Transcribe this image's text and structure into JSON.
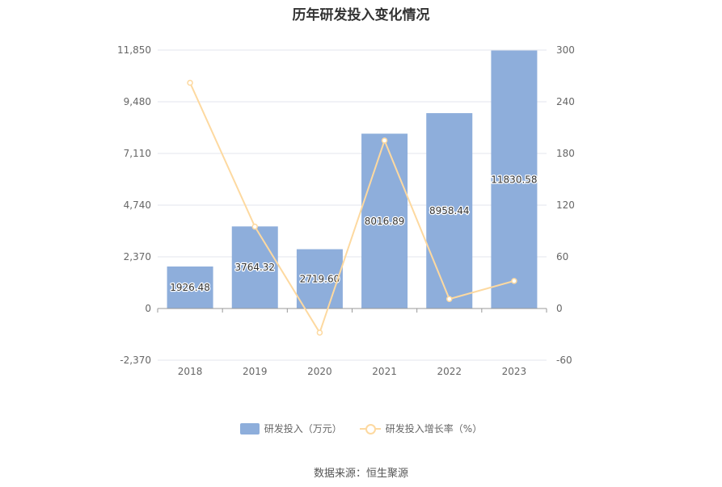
{
  "chart_data": {
    "type": "bar",
    "title": "历年研发投入变化情况",
    "categories": [
      "2018",
      "2019",
      "2020",
      "2021",
      "2022",
      "2023"
    ],
    "series": [
      {
        "name": "研发投入（万元）",
        "type": "bar",
        "axis": "left",
        "values": [
          1926.48,
          3764.32,
          2719.6,
          8016.89,
          8958.44,
          11830.58
        ],
        "labels": [
          "1926.48",
          "3764.32",
          "2719.60",
          "8016.89",
          "8958.44",
          "11830.58"
        ],
        "color": "#8eaedb"
      },
      {
        "name": "研发投入增长率（%）",
        "type": "line",
        "axis": "right",
        "values": [
          262,
          95,
          -28,
          195,
          11,
          32
        ],
        "color": "#fdd9a0"
      }
    ],
    "y_left": {
      "ylim": [
        -2370,
        11850
      ],
      "ticks": [
        -2370,
        0,
        2370,
        4740,
        7110,
        9480,
        11850
      ],
      "tick_labels": [
        "-2,370",
        "0",
        "2,370",
        "4,740",
        "7,110",
        "9,480",
        "11,850"
      ]
    },
    "y_right": {
      "ylim": [
        -60,
        300
      ],
      "ticks": [
        -60,
        0,
        60,
        120,
        180,
        240,
        300
      ],
      "tick_labels": [
        "-60",
        "0",
        "60",
        "120",
        "180",
        "240",
        "300"
      ]
    },
    "grid": true,
    "legend": "bottom-center"
  },
  "legend": {
    "bar_label": "研发投入（万元）",
    "line_label": "研发投入增长率（%）"
  },
  "source": "数据来源：恒生聚源"
}
